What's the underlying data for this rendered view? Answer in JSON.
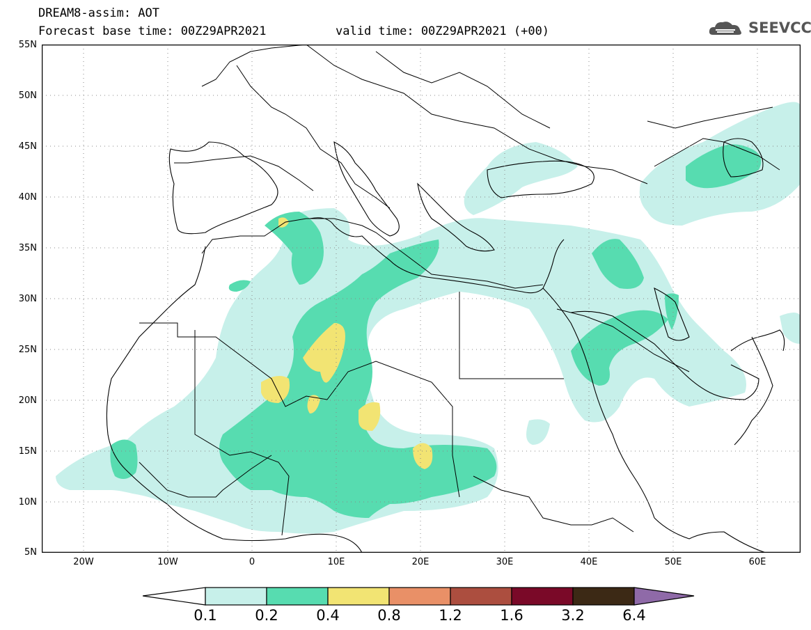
{
  "title": {
    "line1": "DREAM8-assim: AOT",
    "base": "Forecast base time: 00Z29APR2021",
    "valid": "valid time: 00Z29APR2021 (+00)"
  },
  "logo": {
    "text": "SEEVCCC",
    "icon": "cloud-icon"
  },
  "map": {
    "lat_ticks": [
      "55N",
      "50N",
      "45N",
      "40N",
      "35N",
      "30N",
      "25N",
      "20N",
      "15N",
      "10N",
      "5N"
    ],
    "lon_ticks": [
      "20W",
      "10W",
      "0",
      "10E",
      "20E",
      "30E",
      "40E",
      "50E",
      "60E"
    ],
    "lat_range": [
      5,
      55
    ],
    "lon_range": [
      -25,
      65
    ],
    "grid": "dotted"
  },
  "legend": {
    "labels": [
      "0.1",
      "0.2",
      "0.4",
      "0.8",
      "1.2",
      "1.6",
      "3.2",
      "6.4"
    ],
    "colors": [
      "#ffffff",
      "#c7f0ea",
      "#57dcb0",
      "#f2e473",
      "#e99067",
      "#ac4e3f",
      "#7a0928",
      "#3c2915",
      "#8f6aa8"
    ]
  }
}
